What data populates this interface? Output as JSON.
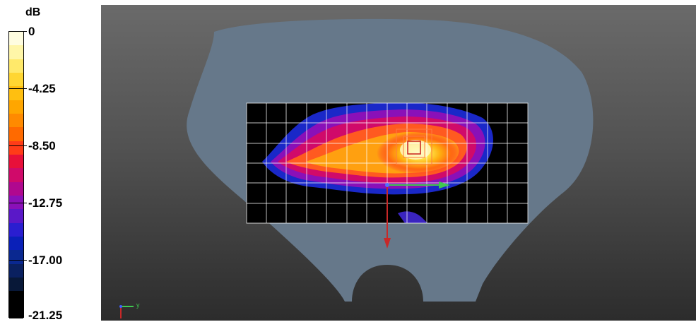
{
  "legend": {
    "unit": "dB",
    "ticks": [
      "0",
      "-4.25",
      "-8.50",
      "-12.75",
      "-17.00",
      "-21.25"
    ],
    "swatches": [
      "#fffde0",
      "#fff6a8",
      "#ffe96a",
      "#ffd632",
      "#ffbf10",
      "#ffa600",
      "#ff8a00",
      "#ff6a00",
      "#ff3c18",
      "#e8103a",
      "#d00a6a",
      "#b0088f",
      "#8a10b8",
      "#5a18c8",
      "#2a1ed0",
      "#0a20b8",
      "#0a2890",
      "#0a2060",
      "#081838",
      "#000000",
      "#000000"
    ]
  },
  "viewport": {
    "background": "#4b4b4b",
    "phantom_color": "#66788a",
    "axis_triad": {
      "y_label": "y"
    },
    "arrow_colors": {
      "x_axis": "#40c850",
      "z_axis": "#c82828"
    }
  }
}
